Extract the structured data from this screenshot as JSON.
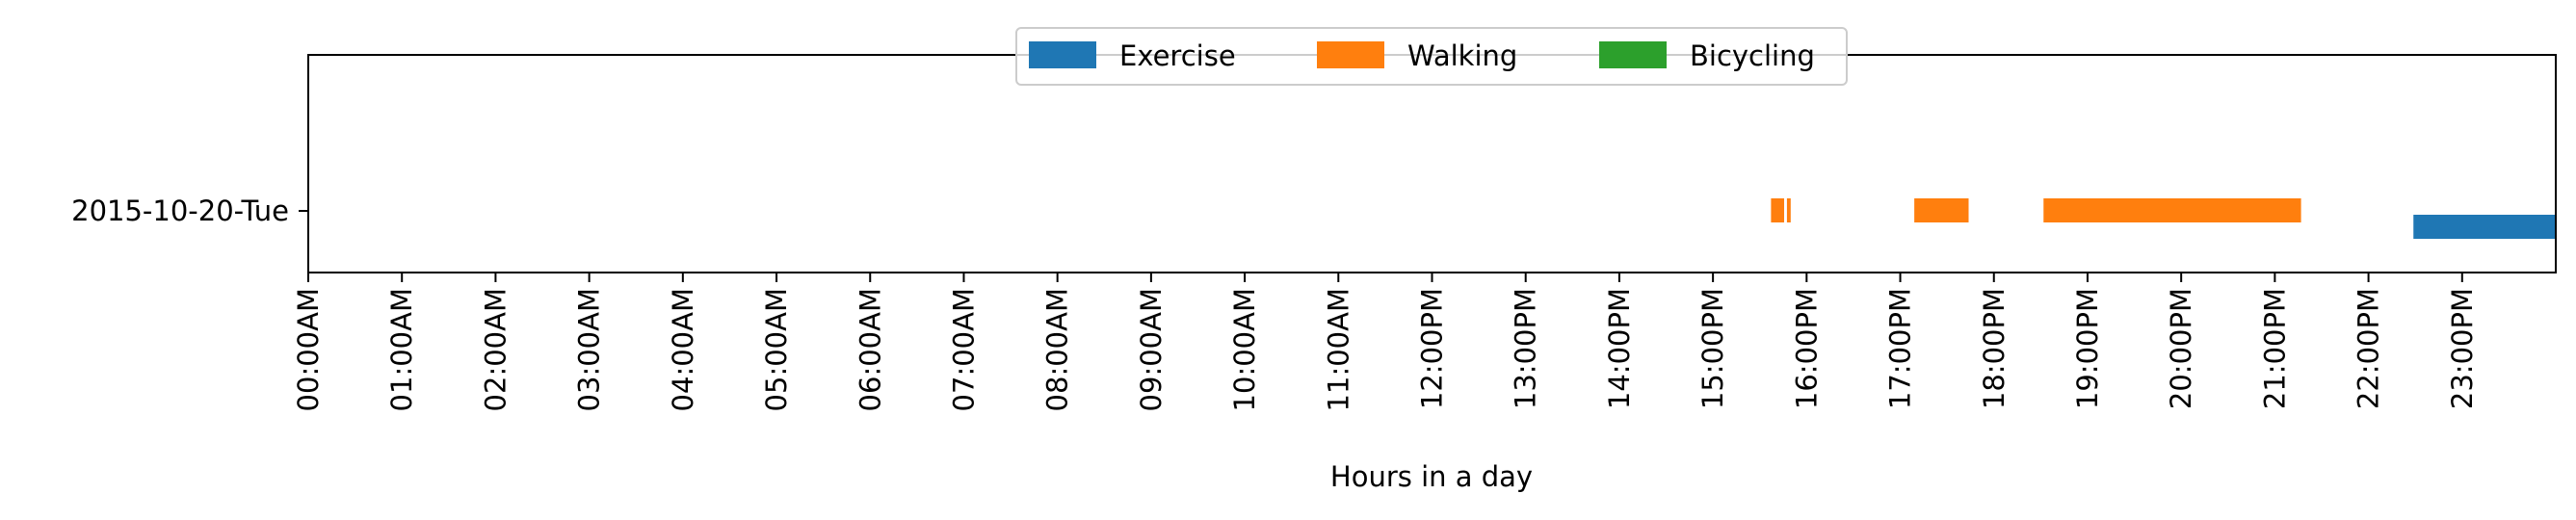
{
  "chart_data": {
    "type": "timeline",
    "xlabel": "Hours in a day",
    "x_unit": "hour of day",
    "xlim": [
      0,
      24
    ],
    "x_ticks": [
      0,
      1,
      2,
      3,
      4,
      5,
      6,
      7,
      8,
      9,
      10,
      11,
      12,
      13,
      14,
      15,
      16,
      17,
      18,
      19,
      20,
      21,
      22,
      23
    ],
    "x_tick_labels": [
      "00:00AM",
      "01:00AM",
      "02:00AM",
      "03:00AM",
      "04:00AM",
      "05:00AM",
      "06:00AM",
      "07:00AM",
      "08:00AM",
      "09:00AM",
      "10:00AM",
      "11:00AM",
      "12:00PM",
      "13:00PM",
      "14:00PM",
      "15:00PM",
      "16:00PM",
      "17:00PM",
      "18:00PM",
      "19:00PM",
      "20:00PM",
      "21:00PM",
      "22:00PM",
      "23:00PM"
    ],
    "categories": [
      "2015-10-20-Tue"
    ],
    "legend_position": "top-center",
    "grid": false,
    "series": [
      {
        "name": "Exercise",
        "color": "#1f77b4",
        "intervals": [
          [
            22.48,
            24.0
          ]
        ]
      },
      {
        "name": "Walking",
        "color": "#ff7f0e",
        "intervals": [
          [
            15.62,
            15.76
          ],
          [
            15.79,
            15.83
          ],
          [
            17.15,
            17.73
          ],
          [
            18.53,
            21.28
          ]
        ]
      },
      {
        "name": "Bicycling",
        "color": "#2ca02c",
        "intervals": []
      }
    ]
  }
}
